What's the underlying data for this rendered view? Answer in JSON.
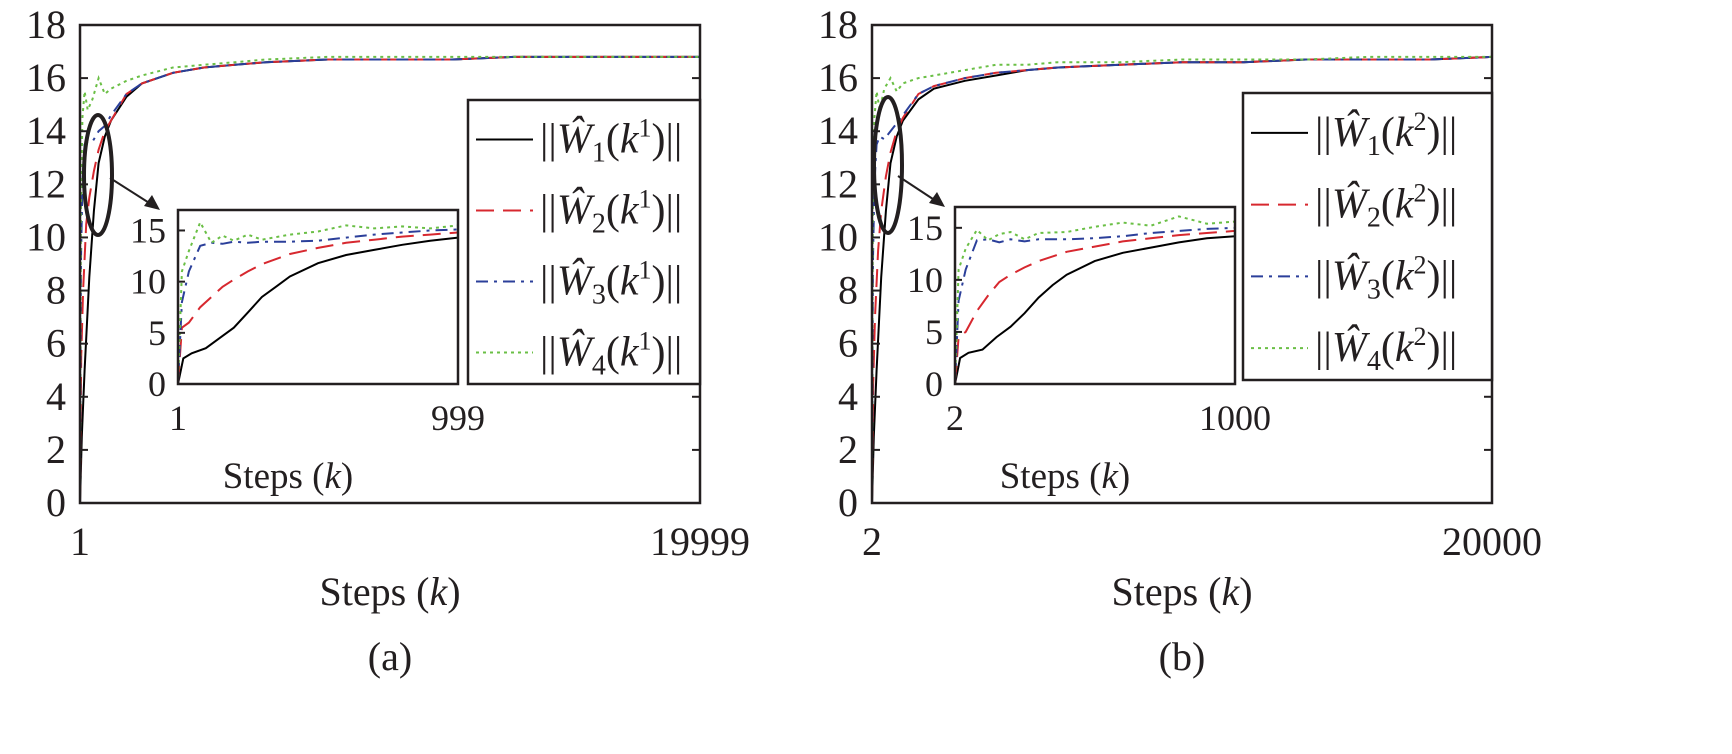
{
  "chart_data": [
    {
      "type": "line",
      "panel_label": "(a)",
      "xlabel": "Steps (k)",
      "xlabel_prefix": "Steps (",
      "xlabel_var": "k",
      "xlabel_suffix": ")",
      "ylabel": "",
      "x_ticks": [
        "1",
        "19999"
      ],
      "xlim": [
        1,
        19999
      ],
      "y_ticks": [
        "0",
        "2",
        "4",
        "6",
        "8",
        "10",
        "12",
        "14",
        "16",
        "18"
      ],
      "ylim": [
        0,
        18
      ],
      "legend_position": "right",
      "legend_sup": "1",
      "series": [
        {
          "name": "||Ŵ1(k1)||",
          "idx": "1",
          "color": "#000000",
          "style": "solid",
          "x": [
            1,
            60,
            150,
            300,
            450,
            600,
            800,
            1000,
            1500,
            2000,
            3000,
            4000,
            5000,
            6000,
            8000,
            10000,
            12000,
            14000,
            16000,
            18000,
            19999
          ],
          "values": [
            0,
            2.5,
            5,
            8.5,
            11,
            12.8,
            13.8,
            14.4,
            15.3,
            15.8,
            16.2,
            16.4,
            16.5,
            16.6,
            16.7,
            16.7,
            16.7,
            16.8,
            16.8,
            16.8,
            16.8
          ]
        },
        {
          "name": "||Ŵ2(k1)||",
          "idx": "2",
          "color": "#d7282f",
          "style": "dashed",
          "x": [
            1,
            40,
            100,
            200,
            300,
            450,
            600,
            800,
            1000,
            1500,
            2000,
            3000,
            4000,
            5000,
            6000,
            8000,
            10000,
            12000,
            14000,
            16000,
            18000,
            19999
          ],
          "values": [
            0,
            5.5,
            8,
            10.5,
            11.5,
            12.5,
            13.3,
            14,
            14.4,
            15.4,
            15.8,
            16.2,
            16.4,
            16.5,
            16.6,
            16.7,
            16.7,
            16.7,
            16.8,
            16.8,
            16.8,
            16.8
          ]
        },
        {
          "name": "||Ŵ3(k1)||",
          "idx": "3",
          "color": "#2b3f9a",
          "style": "dashdot",
          "x": [
            1,
            30,
            80,
            150,
            250,
            400,
            600,
            800,
            1000,
            1500,
            2000,
            3000,
            4000,
            5000,
            6000,
            8000,
            10000,
            12000,
            14000,
            16000,
            18000,
            19999
          ],
          "values": [
            0,
            9,
            12,
            13.5,
            13.6,
            13.6,
            14,
            14.2,
            14.6,
            15.4,
            15.8,
            16.2,
            16.4,
            16.5,
            16.6,
            16.7,
            16.7,
            16.7,
            16.8,
            16.8,
            16.8,
            16.8
          ]
        },
        {
          "name": "||Ŵ4(k1)||",
          "idx": "4",
          "color": "#6abf45",
          "style": "dotted",
          "x": [
            1,
            30,
            80,
            150,
            250,
            400,
            600,
            800,
            1000,
            1500,
            2000,
            3000,
            4000,
            5000,
            6000,
            8000,
            10000,
            12000,
            14000,
            16000,
            18000,
            19999
          ],
          "values": [
            0,
            11,
            14.5,
            15.5,
            14.8,
            15.2,
            16,
            15.4,
            15.6,
            15.9,
            16.1,
            16.4,
            16.5,
            16.6,
            16.7,
            16.8,
            16.8,
            16.8,
            16.8,
            16.8,
            16.8,
            16.8
          ]
        }
      ],
      "inset": {
        "xlabel": "Steps (k)",
        "x_ticks": [
          "1",
          "999"
        ],
        "xlim": [
          1,
          999
        ],
        "y_ticks": [
          "0",
          "5",
          "10",
          "15"
        ],
        "ylim": [
          0,
          17
        ],
        "series": [
          {
            "name": "||Ŵ1(k1)||",
            "x": [
              1,
              20,
              50,
              100,
              150,
              200,
              250,
              300,
              350,
              400,
              500,
              600,
              700,
              800,
              900,
              999
            ],
            "values": [
              0,
              2.5,
              3,
              3.5,
              4.5,
              5.5,
              7,
              8.5,
              9.5,
              10.5,
              11.8,
              12.6,
              13.1,
              13.6,
              14,
              14.3
            ]
          },
          {
            "name": "||Ŵ2(k1)||",
            "x": [
              1,
              15,
              40,
              80,
              120,
              160,
              200,
              250,
              300,
              400,
              500,
              600,
              700,
              800,
              900,
              999
            ],
            "values": [
              0,
              5.5,
              6,
              7.5,
              8.5,
              9.5,
              10.2,
              11,
              11.7,
              12.7,
              13.3,
              13.8,
              14.1,
              14.4,
              14.6,
              14.8
            ]
          },
          {
            "name": "||Ŵ3(k1)||",
            "x": [
              1,
              15,
              40,
              80,
              120,
              160,
              200,
              250,
              300,
              400,
              500,
              600,
              700,
              800,
              900,
              999
            ],
            "values": [
              0,
              8,
              11,
              13.5,
              13.8,
              13.7,
              13.9,
              13.8,
              13.9,
              13.9,
              14,
              14.3,
              14.6,
              14.8,
              15,
              15.1
            ]
          },
          {
            "name": "||Ŵ4(k1)||",
            "x": [
              1,
              15,
              40,
              80,
              120,
              160,
              200,
              250,
              300,
              400,
              500,
              600,
              700,
              800,
              900,
              999
            ],
            "values": [
              0,
              11,
              13,
              15.8,
              13.8,
              14.5,
              14,
              14.6,
              14.1,
              14.6,
              14.9,
              15.5,
              15.2,
              15.4,
              15.2,
              15.5
            ]
          }
        ]
      }
    },
    {
      "type": "line",
      "panel_label": "(b)",
      "xlabel": "Steps (k)",
      "xlabel_prefix": "Steps (",
      "xlabel_var": "k",
      "xlabel_suffix": ")",
      "ylabel": "",
      "x_ticks": [
        "2",
        "20000"
      ],
      "xlim": [
        2,
        20000
      ],
      "y_ticks": [
        "0",
        "2",
        "4",
        "6",
        "8",
        "10",
        "12",
        "14",
        "16",
        "18"
      ],
      "ylim": [
        0,
        18
      ],
      "legend_position": "right",
      "legend_sup": "2",
      "series": [
        {
          "name": "||Ŵ1(k2)||",
          "idx": "1",
          "color": "#000000",
          "style": "solid",
          "x": [
            2,
            60,
            150,
            300,
            450,
            600,
            800,
            1000,
            1500,
            2000,
            3000,
            4000,
            5000,
            6000,
            8000,
            10000,
            12000,
            14000,
            16000,
            18000,
            20000
          ],
          "values": [
            0,
            2.5,
            5,
            8.5,
            11,
            12.8,
            13.8,
            14.4,
            15.2,
            15.6,
            15.9,
            16.1,
            16.3,
            16.4,
            16.5,
            16.6,
            16.6,
            16.7,
            16.7,
            16.7,
            16.8
          ]
        },
        {
          "name": "||Ŵ2(k2)||",
          "idx": "2",
          "color": "#d7282f",
          "style": "dashed",
          "x": [
            2,
            40,
            100,
            200,
            300,
            450,
            600,
            800,
            1000,
            1500,
            2000,
            3000,
            4000,
            5000,
            6000,
            8000,
            10000,
            12000,
            14000,
            16000,
            18000,
            20000
          ],
          "values": [
            0,
            4.5,
            7,
            9.5,
            11,
            12.3,
            13.2,
            14,
            14.5,
            15.4,
            15.7,
            16,
            16.2,
            16.3,
            16.4,
            16.5,
            16.6,
            16.6,
            16.7,
            16.7,
            16.7,
            16.8
          ]
        },
        {
          "name": "||Ŵ3(k2)||",
          "idx": "3",
          "color": "#2b3f9a",
          "style": "dashdot",
          "x": [
            2,
            30,
            80,
            150,
            250,
            400,
            600,
            800,
            1000,
            1500,
            2000,
            3000,
            4000,
            5000,
            6000,
            8000,
            10000,
            12000,
            14000,
            16000,
            18000,
            20000
          ],
          "values": [
            0,
            9,
            12,
            13.5,
            13.8,
            13.7,
            14,
            14.3,
            14.6,
            15.4,
            15.7,
            16,
            16.2,
            16.3,
            16.4,
            16.5,
            16.6,
            16.6,
            16.7,
            16.7,
            16.7,
            16.8
          ]
        },
        {
          "name": "||Ŵ4(k2)||",
          "idx": "4",
          "color": "#6abf45",
          "style": "dotted",
          "x": [
            2,
            30,
            80,
            150,
            250,
            400,
            600,
            800,
            1000,
            1500,
            2000,
            3000,
            4000,
            5000,
            6000,
            8000,
            10000,
            12000,
            14000,
            16000,
            18000,
            20000
          ],
          "values": [
            0,
            12,
            14.5,
            15.5,
            14.8,
            15.6,
            16,
            15.5,
            15.8,
            16,
            16.1,
            16.3,
            16.5,
            16.5,
            16.6,
            16.6,
            16.7,
            16.7,
            16.7,
            16.8,
            16.8,
            16.8
          ]
        }
      ],
      "inset": {
        "xlabel": "Steps (k)",
        "x_ticks": [
          "2",
          "1000"
        ],
        "xlim": [
          2,
          1000
        ],
        "y_ticks": [
          "0",
          "5",
          "10",
          "15"
        ],
        "ylim": [
          0,
          17
        ],
        "series": [
          {
            "name": "||Ŵ1(k2)||",
            "x": [
              2,
              20,
              50,
              100,
              150,
              200,
              250,
              300,
              350,
              400,
              500,
              600,
              700,
              800,
              900,
              1000
            ],
            "values": [
              0,
              2.5,
              3,
              3.3,
              4.5,
              5.5,
              6.8,
              8.3,
              9.5,
              10.5,
              11.8,
              12.6,
              13.1,
              13.6,
              14,
              14.2
            ]
          },
          {
            "name": "||Ŵ2(k2)||",
            "x": [
              2,
              15,
              40,
              80,
              120,
              160,
              200,
              250,
              300,
              400,
              500,
              600,
              700,
              800,
              900,
              1000
            ],
            "values": [
              0,
              4.5,
              5,
              7,
              8.5,
              9.8,
              10.5,
              11.2,
              11.8,
              12.7,
              13.2,
              13.7,
              14,
              14.3,
              14.5,
              14.7
            ]
          },
          {
            "name": "||Ŵ3(k2)||",
            "x": [
              2,
              15,
              40,
              80,
              120,
              160,
              200,
              250,
              300,
              400,
              500,
              600,
              700,
              800,
              900,
              1000
            ],
            "values": [
              0,
              8,
              11,
              13.8,
              13.9,
              13.6,
              13.9,
              13.7,
              13.9,
              13.9,
              14,
              14.2,
              14.5,
              14.7,
              14.9,
              15
            ]
          },
          {
            "name": "||Ŵ4(k2)||",
            "x": [
              2,
              15,
              40,
              80,
              120,
              160,
              200,
              250,
              300,
              400,
              500,
              600,
              700,
              800,
              900,
              1000
            ],
            "values": [
              0,
              11,
              13,
              14.8,
              13.8,
              14.4,
              14.6,
              13.9,
              14.5,
              14.6,
              15.1,
              15.5,
              15.2,
              16.1,
              15.4,
              15.6
            ]
          }
        ]
      }
    }
  ]
}
